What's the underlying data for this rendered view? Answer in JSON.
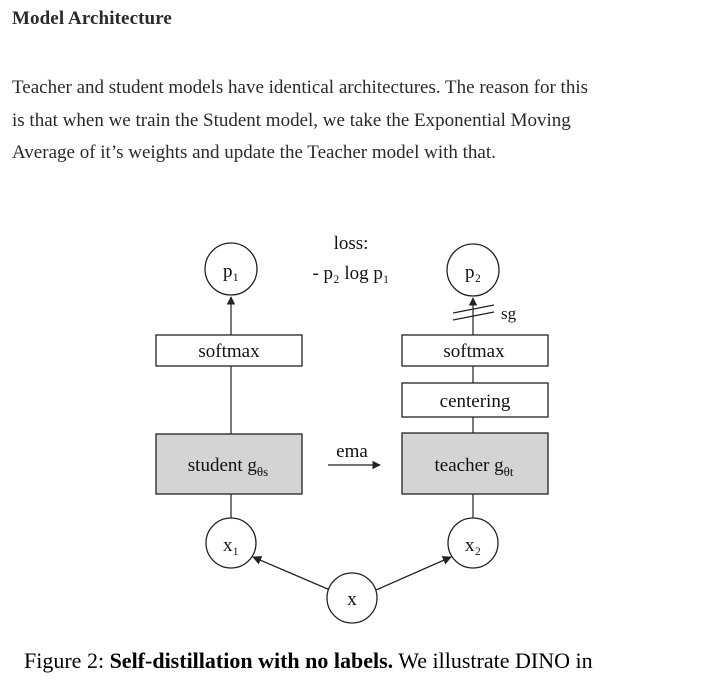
{
  "article": {
    "heading": "Model Architecture",
    "paragraph_lines": [
      "Teacher and student models have identical architectures. The reason for this",
      "is that when we train the Student model, we take the Exponential Moving",
      "Average of it’s weights and update the Teacher model with that."
    ]
  },
  "figure": {
    "loss_title": "loss:",
    "loss_formula": "- p₂ log p₁",
    "student": {
      "output": "p₁",
      "softmax": "softmax",
      "network": "student g",
      "network_sub": "θs",
      "input": "x₁"
    },
    "teacher": {
      "output": "p₂",
      "stop_grad": "sg",
      "softmax": "softmax",
      "centering": "centering",
      "network": "teacher g",
      "network_sub": "θt",
      "input": "x₂"
    },
    "ema_label": "ema",
    "root_input": "x",
    "colors": {
      "network_fill": "#d4d4d4",
      "stroke": "#222222"
    }
  },
  "caption": {
    "prefix": "Figure 2: ",
    "bold": "Self-distillation with no labels.",
    "rest": " We illustrate DINO in"
  }
}
